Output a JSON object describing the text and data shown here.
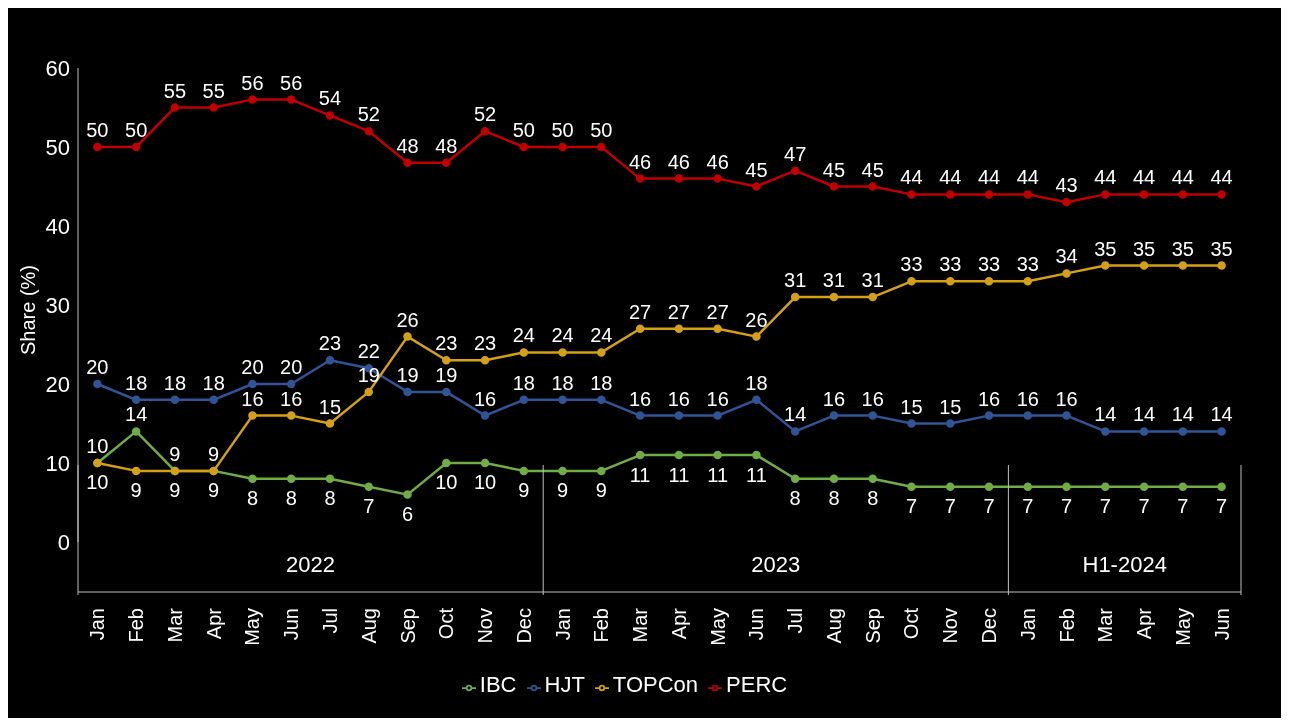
{
  "chart_data": {
    "type": "line",
    "ylabel": "Share (%)",
    "categories": [
      "Jan",
      "Feb",
      "Mar",
      "Apr",
      "May",
      "Jun",
      "Jul",
      "Aug",
      "Sep",
      "Oct",
      "Nov",
      "Dec",
      "Jan",
      "Feb",
      "Mar",
      "Apr",
      "May",
      "Jun",
      "Jul",
      "Aug",
      "Sep",
      "Oct",
      "Nov",
      "Dec",
      "Jan",
      "Feb",
      "Mar",
      "Apr",
      "May",
      "Jun"
    ],
    "series": [
      {
        "name": "IBC",
        "color": "#70ad47",
        "values": [
          10,
          14,
          9,
          9,
          8,
          8,
          8,
          7,
          6,
          10,
          10,
          9,
          9,
          9,
          11,
          11,
          11,
          11,
          8,
          8,
          8,
          7,
          7,
          7,
          7,
          7,
          7,
          7,
          7,
          7
        ]
      },
      {
        "name": "HJT",
        "color": "#2f5597",
        "values": [
          20,
          18,
          18,
          18,
          20,
          20,
          23,
          22,
          19,
          19,
          16,
          18,
          18,
          18,
          16,
          16,
          16,
          18,
          14,
          16,
          16,
          15,
          15,
          16,
          16,
          16,
          14,
          14,
          14,
          14
        ]
      },
      {
        "name": "TOPCon",
        "color": "#d4a017",
        "values": [
          10,
          9,
          9,
          9,
          16,
          16,
          15,
          19,
          26,
          23,
          23,
          24,
          24,
          24,
          27,
          27,
          27,
          26,
          31,
          31,
          31,
          33,
          33,
          33,
          33,
          34,
          35,
          35,
          35,
          35
        ]
      },
      {
        "name": "PERC",
        "color": "#c00000",
        "values": [
          50,
          50,
          55,
          55,
          56,
          56,
          54,
          52,
          48,
          48,
          52,
          50,
          50,
          50,
          46,
          46,
          46,
          45,
          47,
          45,
          45,
          44,
          44,
          44,
          44,
          43,
          44,
          44,
          44,
          44
        ]
      }
    ],
    "annotations": [
      "2022",
      "2023",
      "H1-2024"
    ],
    "ylim": [
      0,
      60
    ],
    "yticks": [
      0,
      10,
      20,
      30,
      40,
      50,
      60
    ],
    "grid": false,
    "legend": "bottom",
    "marker": "circle",
    "line_style": "solid",
    "data_labels": true
  }
}
